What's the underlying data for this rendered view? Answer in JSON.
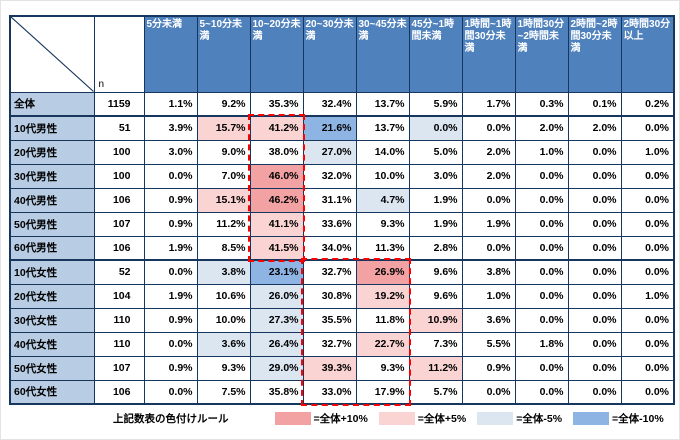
{
  "chart_data": {
    "type": "table",
    "n_label": "n",
    "unit": "%",
    "columns": [
      "5分未満",
      "5~10分未満",
      "10~20分未満",
      "20~30分未満",
      "30~45分未満",
      "45分~1時間未満",
      "1時間~1時間30分未満",
      "1時間30分~2時間未満",
      "2時間~2時間30分未満",
      "2時間30分以上"
    ],
    "overall_row_label": "全体",
    "rows": [
      {
        "label": "全体",
        "n": 1159,
        "values": [
          1.1,
          9.2,
          35.3,
          32.4,
          13.7,
          5.9,
          1.7,
          0.3,
          0.1,
          0.2
        ],
        "section_end": true
      },
      {
        "label": "10代男性",
        "n": 51,
        "values": [
          3.9,
          15.7,
          41.2,
          21.6,
          13.7,
          0.0,
          0.0,
          2.0,
          2.0,
          0.0
        ]
      },
      {
        "label": "20代男性",
        "n": 100,
        "values": [
          3.0,
          9.0,
          38.0,
          27.0,
          14.0,
          5.0,
          2.0,
          1.0,
          0.0,
          1.0
        ]
      },
      {
        "label": "30代男性",
        "n": 100,
        "values": [
          0.0,
          7.0,
          46.0,
          32.0,
          10.0,
          3.0,
          2.0,
          0.0,
          0.0,
          0.0
        ]
      },
      {
        "label": "40代男性",
        "n": 106,
        "values": [
          0.9,
          15.1,
          46.2,
          31.1,
          4.7,
          1.9,
          0.0,
          0.0,
          0.0,
          0.0
        ]
      },
      {
        "label": "50代男性",
        "n": 107,
        "values": [
          0.9,
          11.2,
          41.1,
          33.6,
          9.3,
          1.9,
          1.9,
          0.0,
          0.0,
          0.0
        ]
      },
      {
        "label": "60代男性",
        "n": 106,
        "values": [
          1.9,
          8.5,
          41.5,
          34.0,
          11.3,
          2.8,
          0.0,
          0.0,
          0.0,
          0.0
        ],
        "section_end": true
      },
      {
        "label": "10代女性",
        "n": 52,
        "values": [
          0.0,
          3.8,
          23.1,
          32.7,
          26.9,
          9.6,
          3.8,
          0.0,
          0.0,
          0.0
        ]
      },
      {
        "label": "20代女性",
        "n": 104,
        "values": [
          1.9,
          10.6,
          26.0,
          30.8,
          19.2,
          9.6,
          1.0,
          0.0,
          0.0,
          1.0
        ]
      },
      {
        "label": "30代女性",
        "n": 110,
        "values": [
          0.9,
          10.0,
          27.3,
          35.5,
          11.8,
          10.9,
          3.6,
          0.0,
          0.0,
          0.0
        ]
      },
      {
        "label": "40代女性",
        "n": 110,
        "values": [
          0.0,
          3.6,
          26.4,
          32.7,
          22.7,
          7.3,
          5.5,
          1.8,
          0.0,
          0.0
        ]
      },
      {
        "label": "50代女性",
        "n": 107,
        "values": [
          0.9,
          9.3,
          29.0,
          39.3,
          9.3,
          11.2,
          0.9,
          0.0,
          0.0,
          0.0
        ]
      },
      {
        "label": "60代女性",
        "n": 106,
        "values": [
          0.0,
          7.5,
          35.8,
          33.0,
          17.9,
          5.7,
          0.0,
          0.0,
          0.0,
          0.0
        ]
      }
    ],
    "highlight_rule_thresholds": {
      "plus10": 10,
      "plus5": 5,
      "minus5": -5,
      "minus10": -10
    },
    "highlights": [
      {
        "name": "male-10-20min",
        "row_start": "10代男性",
        "row_end": "60代男性",
        "col_start": "10~20分未満",
        "col_end": "10~20分未満"
      },
      {
        "name": "female-20-45min",
        "row_start": "10代女性",
        "row_end": "60代女性",
        "col_start": "20~30分未満",
        "col_end": "30~45分未満"
      }
    ],
    "legend": {
      "title": "上記数表の色付けルール",
      "items": [
        {
          "key": "plus10",
          "label": "=全体+10%"
        },
        {
          "key": "plus5",
          "label": "=全体+5%"
        },
        {
          "key": "minus5",
          "label": "=全体-5%"
        },
        {
          "key": "minus10",
          "label": "=全体-10%"
        }
      ]
    }
  },
  "colors": {
    "header_bg": "#4F81BD",
    "row_header_bg": "#B8CCE4",
    "border": "#17365D",
    "plus10": "#F2A2A2",
    "plus5": "#FAD3D3",
    "minus5": "#DCE6F1",
    "minus10": "#8DB4E2",
    "highlight_box": "#FF0000"
  }
}
